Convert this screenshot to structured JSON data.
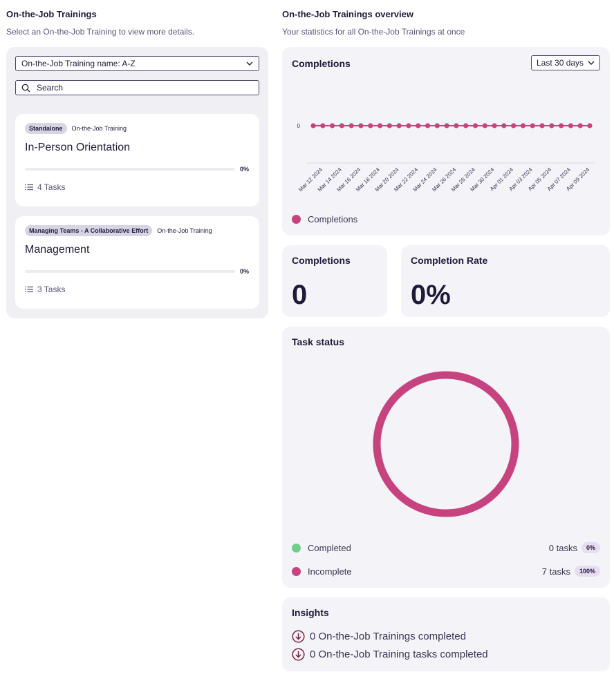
{
  "left": {
    "title": "On-the-Job Trainings",
    "subtitle": "Select an On-the-Job Training to view more details.",
    "sort_value": "On-the-Job Training name: A-Z",
    "search_placeholder": "Search",
    "trainings": [
      {
        "badge": "Standalone",
        "type": "On-the-Job Training",
        "name": "In-Person Orientation",
        "progress": 0,
        "progress_label": "0%",
        "tasks": "4 Tasks"
      },
      {
        "badge": "Managing Teams - A Collaborative Effort",
        "type": "On-the-Job Training",
        "name": "Management",
        "progress": 0,
        "progress_label": "0%",
        "tasks": "3 Tasks"
      }
    ]
  },
  "right": {
    "title": "On-the-Job Trainings overview",
    "subtitle": "Your statistics for all On-the-Job Trainings at once",
    "completions_chart": {
      "title": "Completions",
      "range": "Last 30 days",
      "legend": "Completions",
      "color": "#c7437f"
    },
    "completions": {
      "title": "Completions",
      "value": "0"
    },
    "completion_rate": {
      "title": "Completion Rate",
      "value": "0%"
    },
    "task_status": {
      "title": "Task status",
      "completed": {
        "label": "Completed",
        "count": "0 tasks",
        "pct": "0%",
        "color": "#6fcf8a"
      },
      "incomplete": {
        "label": "Incomplete",
        "count": "7 tasks",
        "pct": "100%",
        "color": "#c7437f"
      }
    },
    "insights": {
      "title": "Insights",
      "items": [
        "0 On-the-Job Trainings completed",
        "0 On-the-Job Training tasks completed"
      ]
    }
  },
  "chart_data": [
    {
      "type": "line",
      "x": [
        "Mar 11 2024",
        "Mar 12 2024",
        "Mar 13 2024",
        "Mar 14 2024",
        "Mar 15 2024",
        "Mar 16 2024",
        "Mar 17 2024",
        "Mar 18 2024",
        "Mar 19 2024",
        "Mar 20 2024",
        "Mar 21 2024",
        "Mar 22 2024",
        "Mar 23 2024",
        "Mar 24 2024",
        "Mar 25 2024",
        "Mar 26 2024",
        "Mar 27 2024",
        "Mar 28 2024",
        "Mar 29 2024",
        "Mar 30 2024",
        "Mar 31 2024",
        "Apr 01 2024",
        "Apr 02 2024",
        "Apr 03 2024",
        "Apr 04 2024",
        "Apr 05 2024",
        "Apr 06 2024",
        "Apr 07 2024",
        "Apr 08 2024",
        "Apr 09 2024"
      ],
      "tick_labels": [
        "Mar 12 2024",
        "Mar 14 2024",
        "Mar 16 2024",
        "Mar 18 2024",
        "Mar 20 2024",
        "Mar 22 2024",
        "Mar 24 2024",
        "Mar 26 2024",
        "Mar 28 2024",
        "Mar 30 2024",
        "Apr 01 2024",
        "Apr 03 2024",
        "Apr 05 2024",
        "Apr 07 2024",
        "Apr 09 2024"
      ],
      "y_ticks": [
        "0"
      ],
      "series": [
        {
          "name": "Completions",
          "values": [
            0,
            0,
            0,
            0,
            0,
            0,
            0,
            0,
            0,
            0,
            0,
            0,
            0,
            0,
            0,
            0,
            0,
            0,
            0,
            0,
            0,
            0,
            0,
            0,
            0,
            0,
            0,
            0,
            0,
            0
          ]
        }
      ],
      "legend": "bottom-left"
    },
    {
      "type": "pie",
      "categories": [
        "Completed",
        "Incomplete"
      ],
      "values": [
        0,
        7
      ]
    }
  ]
}
